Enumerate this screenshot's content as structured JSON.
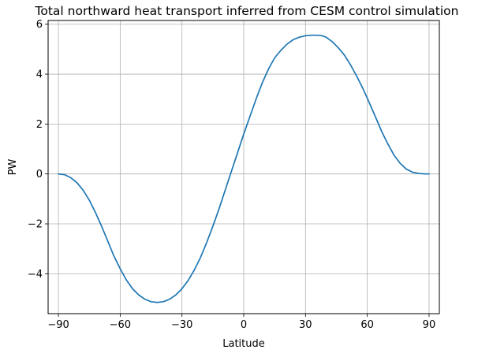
{
  "chart_data": {
    "type": "line",
    "title": "Total northward heat transport inferred from CESM control simulation",
    "xlabel": "Latitude",
    "ylabel": "PW",
    "xlim": [
      -95,
      95
    ],
    "ylim": [
      -5.6,
      6.15
    ],
    "xticks": [
      -90,
      -60,
      -30,
      0,
      30,
      60,
      90
    ],
    "xtick_labels": [
      "−90",
      "−60",
      "−30",
      "0",
      "30",
      "60",
      "90"
    ],
    "yticks": [
      -4,
      -2,
      0,
      2,
      4,
      6
    ],
    "ytick_labels": [
      "−4",
      "−2",
      "0",
      "2",
      "4",
      "6"
    ],
    "grid": true,
    "series": [
      {
        "color": "#1f77b4",
        "x": [
          -90,
          -87,
          -84,
          -81,
          -78,
          -75,
          -72,
          -69,
          -66,
          -63,
          -60,
          -57,
          -54,
          -51,
          -48,
          -45,
          -42,
          -39,
          -36,
          -33,
          -30,
          -27,
          -24,
          -21,
          -18,
          -15,
          -12,
          -9,
          -6,
          -3,
          0,
          3,
          6,
          9,
          12,
          15,
          18,
          21,
          24,
          27,
          30,
          33,
          36,
          38,
          40,
          43,
          46,
          49,
          52,
          55,
          58,
          61,
          64,
          67,
          70,
          73,
          76,
          79,
          82,
          85,
          88,
          90
        ],
        "y": [
          0.0,
          -0.03,
          -0.15,
          -0.35,
          -0.65,
          -1.05,
          -1.55,
          -2.1,
          -2.7,
          -3.3,
          -3.8,
          -4.25,
          -4.6,
          -4.85,
          -5.02,
          -5.12,
          -5.15,
          -5.12,
          -5.02,
          -4.85,
          -4.6,
          -4.27,
          -3.85,
          -3.35,
          -2.75,
          -2.1,
          -1.4,
          -0.65,
          0.1,
          0.85,
          1.6,
          2.3,
          3.0,
          3.65,
          4.2,
          4.65,
          4.95,
          5.2,
          5.38,
          5.48,
          5.54,
          5.56,
          5.56,
          5.54,
          5.48,
          5.3,
          5.05,
          4.75,
          4.35,
          3.9,
          3.4,
          2.85,
          2.28,
          1.7,
          1.2,
          0.75,
          0.42,
          0.19,
          0.07,
          0.02,
          0.0,
          0.0
        ]
      }
    ]
  }
}
